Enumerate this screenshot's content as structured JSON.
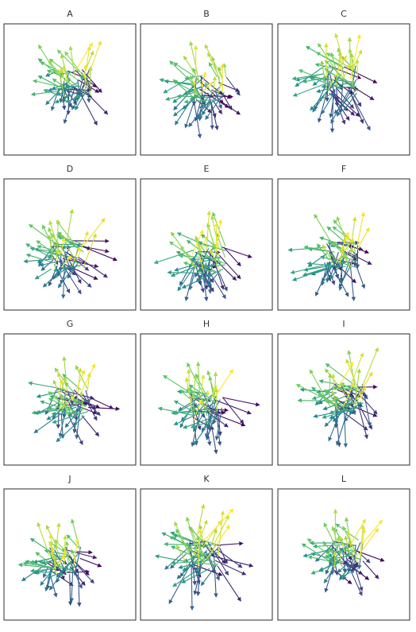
{
  "panel_titles": [
    "A",
    "B",
    "C",
    "D",
    "E",
    "F",
    "G",
    "H",
    "I",
    "J",
    "K",
    "L"
  ],
  "chart_data": [
    {
      "type": "quiver",
      "title": "A"
    },
    {
      "type": "quiver",
      "title": "B"
    },
    {
      "type": "quiver",
      "title": "C"
    },
    {
      "type": "quiver",
      "title": "D"
    },
    {
      "type": "quiver",
      "title": "E"
    },
    {
      "type": "quiver",
      "title": "F"
    },
    {
      "type": "quiver",
      "title": "G"
    },
    {
      "type": "quiver",
      "title": "H"
    },
    {
      "type": "quiver",
      "title": "I"
    },
    {
      "type": "quiver",
      "title": "J"
    },
    {
      "type": "quiver",
      "title": "K"
    },
    {
      "type": "quiver",
      "title": "L"
    }
  ],
  "colormap": [
    "#440154",
    "#3b528b",
    "#21908c",
    "#5ec962",
    "#fde725"
  ],
  "frame_color": "#2b2b2b",
  "axes_visible": false,
  "grid": false,
  "legend": "none"
}
